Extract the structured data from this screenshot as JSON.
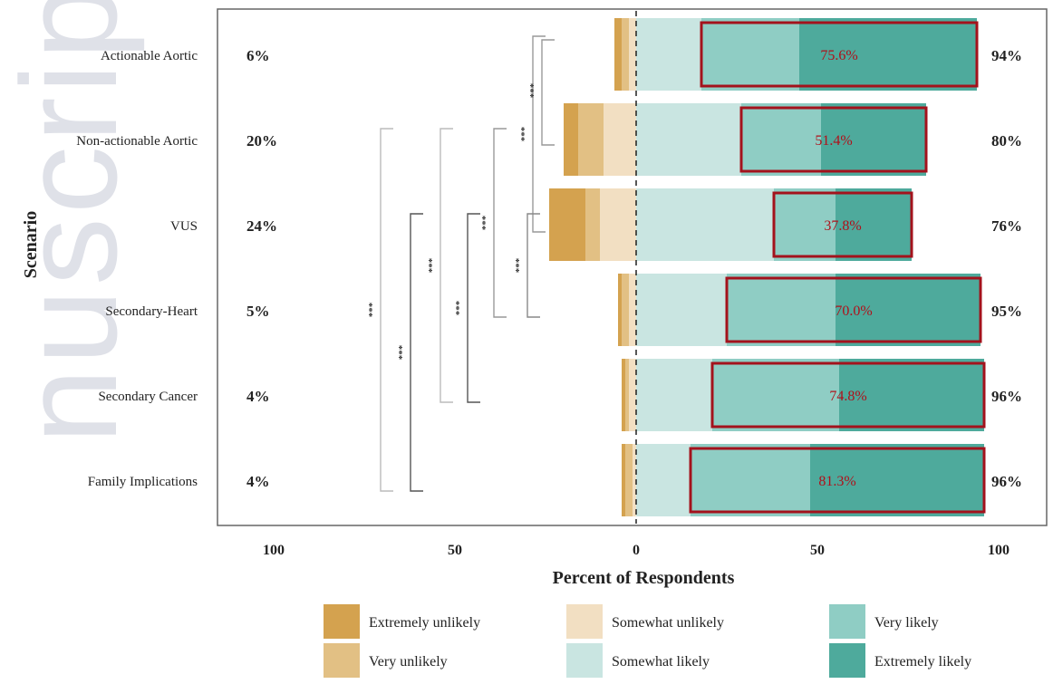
{
  "chart_data": {
    "type": "diverging-stacked-bar",
    "ylabel": "Scenario",
    "xlabel": "Percent of Respondents",
    "xlim": [
      -100,
      100
    ],
    "x_ticks": [
      "100",
      "50",
      "0",
      "50",
      "100"
    ],
    "categories": [
      "Actionable Aortic",
      "Non-actionable Aortic",
      "VUS",
      "Secondary-Heart",
      "Secondary Cancer",
      "Family Implications"
    ],
    "series": [
      {
        "name": "Extremely unlikely",
        "color": "#d4a24f",
        "side": "negative",
        "values": [
          2,
          4,
          10,
          1,
          1,
          1
        ]
      },
      {
        "name": "Very unlikely",
        "color": "#e2c084",
        "side": "negative",
        "values": [
          2,
          7,
          4,
          2,
          1,
          2
        ]
      },
      {
        "name": "Somewhat unlikely",
        "color": "#f2dfc2",
        "side": "negative",
        "values": [
          2,
          9,
          10,
          2,
          2,
          1
        ]
      },
      {
        "name": "Somewhat likely",
        "color": "#c9e5e1",
        "side": "positive",
        "values": [
          18,
          29,
          38,
          25,
          21,
          15
        ]
      },
      {
        "name": "Very likely",
        "color": "#8fcdc4",
        "side": "positive",
        "values": [
          27,
          22,
          17,
          30,
          35,
          33
        ]
      },
      {
        "name": "Extremely likely",
        "color": "#4eaa9c",
        "side": "positive",
        "values": [
          49,
          29,
          21,
          40,
          40,
          48
        ]
      }
    ],
    "unlikely_totals": [
      "6%",
      "20%",
      "24%",
      "5%",
      "4%",
      "4%"
    ],
    "likely_totals": [
      "94%",
      "80%",
      "76%",
      "95%",
      "96%",
      "96%"
    ],
    "highlighted": [
      "75.6%",
      "51.4%",
      "37.8%",
      "70.0%",
      "74.8%",
      "81.3%"
    ],
    "significance": [
      {
        "from": 0,
        "to": 1,
        "label": "***"
      },
      {
        "from": 0,
        "to": 2,
        "label": "***"
      },
      {
        "from": 1,
        "to": 2,
        "label": "***"
      },
      {
        "from": 2,
        "to": 3,
        "label": "***"
      },
      {
        "from": 1,
        "to": 3,
        "label": "***"
      },
      {
        "from": 2,
        "to": 4,
        "label": "***"
      },
      {
        "from": 1,
        "to": 4,
        "label": "***"
      },
      {
        "from": 2,
        "to": 5,
        "label": "***"
      },
      {
        "from": 1,
        "to": 5,
        "label": "***"
      }
    ],
    "legend": [
      "Extremely unlikely",
      "Very unlikely",
      "Somewhat unlikely",
      "Somewhat likely",
      "Very likely",
      "Extremely likely"
    ],
    "watermark": "nuscript"
  }
}
